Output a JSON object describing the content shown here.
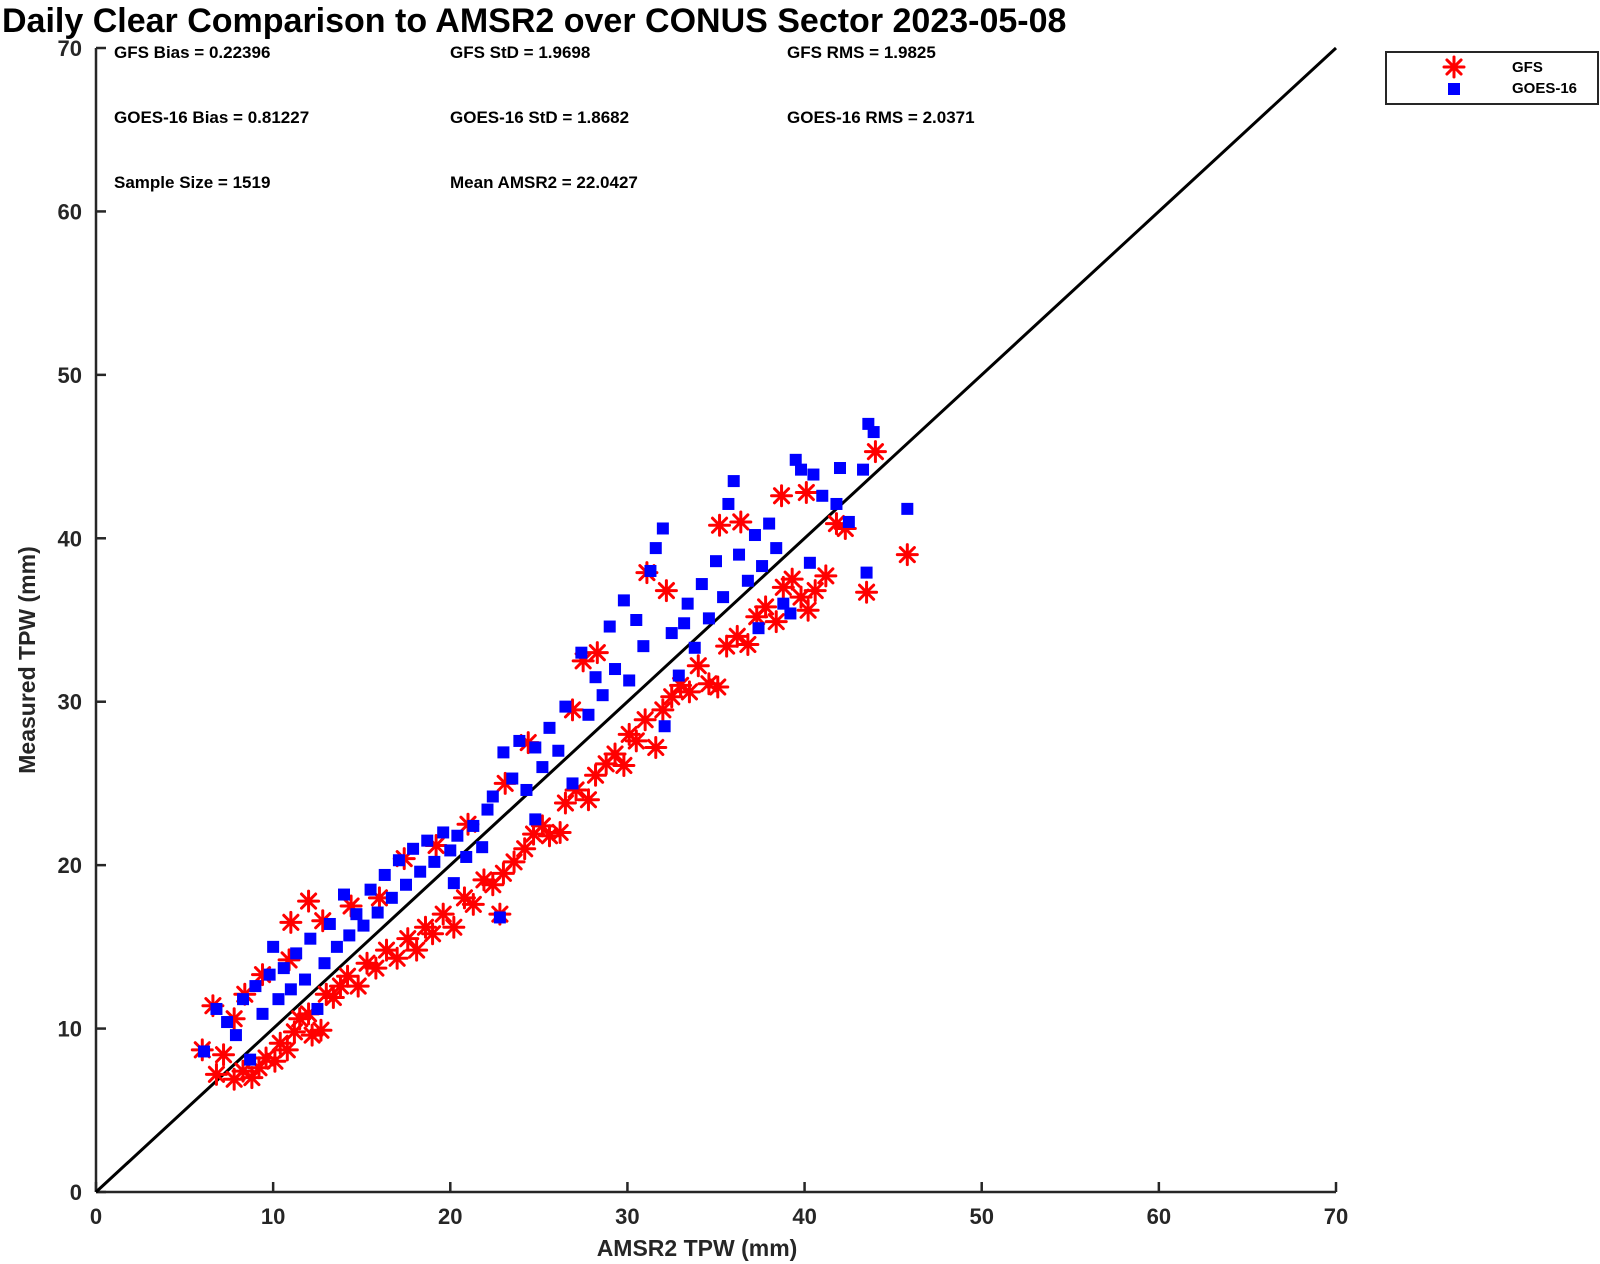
{
  "colors": {
    "gfs": "#ff0000",
    "goes": "#0000ff",
    "axis": "#262626",
    "reference_line": "#000000"
  },
  "chart_data": {
    "type": "scatter",
    "title": "Daily Clear Comparison to AMSR2 over CONUS Sector 2023-05-08",
    "xlabel": "AMSR2 TPW (mm)",
    "ylabel": "Measured TPW (mm)",
    "xlim": [
      0,
      70
    ],
    "ylim": [
      0,
      70
    ],
    "xticks": [
      0,
      10,
      20,
      30,
      40,
      50,
      60,
      70
    ],
    "yticks": [
      0,
      10,
      20,
      30,
      40,
      50,
      60,
      70
    ],
    "xtick_labels": [
      "0",
      "10",
      "20",
      "30",
      "40",
      "50",
      "60",
      "70"
    ],
    "ytick_labels": [
      "0",
      "10",
      "20",
      "30",
      "40",
      "50",
      "60",
      "70"
    ],
    "grid": false,
    "legend_position": "top-right-outside",
    "reference_line": {
      "name": "1:1 line",
      "from": [
        0,
        0
      ],
      "to": [
        70,
        70
      ]
    },
    "annotations": {
      "gfs_bias": "GFS Bias = 0.22396",
      "gfs_std": "GFS StD = 1.9698",
      "gfs_rms": "GFS RMS = 1.9825",
      "goes_bias": "GOES-16 Bias = 0.81227",
      "goes_std": "GOES-16 StD = 1.8682",
      "goes_rms": "GOES-16 RMS = 2.0371",
      "sample_size": "Sample Size = 1519",
      "mean_amsr2": "Mean AMSR2 = 22.0427"
    },
    "series": [
      {
        "name": "GFS",
        "marker": "asterisk",
        "color": "#ff0000",
        "points": [
          [
            6.0,
            8.7
          ],
          [
            6.6,
            11.4
          ],
          [
            6.8,
            7.2
          ],
          [
            7.2,
            8.4
          ],
          [
            7.8,
            6.9
          ],
          [
            8.3,
            7.4
          ],
          [
            8.8,
            7.0
          ],
          [
            9.2,
            7.6
          ],
          [
            9.6,
            8.2
          ],
          [
            10.1,
            8.0
          ],
          [
            10.4,
            9.1
          ],
          [
            10.8,
            8.7
          ],
          [
            11.2,
            9.8
          ],
          [
            11.5,
            10.6
          ],
          [
            12.0,
            10.9
          ],
          [
            12.2,
            9.6
          ],
          [
            12.7,
            9.9
          ],
          [
            11.0,
            16.5
          ],
          [
            12.0,
            17.8
          ],
          [
            13.0,
            12.1
          ],
          [
            13.4,
            11.9
          ],
          [
            13.8,
            12.6
          ],
          [
            14.2,
            13.2
          ],
          [
            14.8,
            12.6
          ],
          [
            15.3,
            14.0
          ],
          [
            15.8,
            13.7
          ],
          [
            16.4,
            14.8
          ],
          [
            17.0,
            14.3
          ],
          [
            17.6,
            15.5
          ],
          [
            18.1,
            14.8
          ],
          [
            18.6,
            16.2
          ],
          [
            19.0,
            15.8
          ],
          [
            19.6,
            17.0
          ],
          [
            20.2,
            16.2
          ],
          [
            20.8,
            18.0
          ],
          [
            21.3,
            17.6
          ],
          [
            21.9,
            19.1
          ],
          [
            22.4,
            18.8
          ],
          [
            22.8,
            17.0
          ],
          [
            23.0,
            19.5
          ],
          [
            23.6,
            20.2
          ],
          [
            24.2,
            21.0
          ],
          [
            24.7,
            21.9
          ],
          [
            25.2,
            22.4
          ],
          [
            25.6,
            21.8
          ],
          [
            26.2,
            22.0
          ],
          [
            26.5,
            23.8
          ],
          [
            27.1,
            24.6
          ],
          [
            27.8,
            24.0
          ],
          [
            28.2,
            25.5
          ],
          [
            28.8,
            26.2
          ],
          [
            29.3,
            26.8
          ],
          [
            29.8,
            26.1
          ],
          [
            30.1,
            28.0
          ],
          [
            30.5,
            27.6
          ],
          [
            31.0,
            28.9
          ],
          [
            31.6,
            27.2
          ],
          [
            32.0,
            29.5
          ],
          [
            32.5,
            30.3
          ],
          [
            33.0,
            31.0
          ],
          [
            33.5,
            30.6
          ],
          [
            34.0,
            32.2
          ],
          [
            34.6,
            31.1
          ],
          [
            35.1,
            30.9
          ],
          [
            35.6,
            33.4
          ],
          [
            36.2,
            34.0
          ],
          [
            36.8,
            33.5
          ],
          [
            37.3,
            35.2
          ],
          [
            37.8,
            35.8
          ],
          [
            38.4,
            34.9
          ],
          [
            38.8,
            37.0
          ],
          [
            39.3,
            37.5
          ],
          [
            39.8,
            36.4
          ],
          [
            40.2,
            35.6
          ],
          [
            40.6,
            36.8
          ],
          [
            41.2,
            37.7
          ],
          [
            41.8,
            40.9
          ],
          [
            42.3,
            40.6
          ],
          [
            43.5,
            36.7
          ],
          [
            44.0,
            45.3
          ],
          [
            45.8,
            39.0
          ],
          [
            38.7,
            42.6
          ],
          [
            40.1,
            42.8
          ],
          [
            35.2,
            40.8
          ],
          [
            36.4,
            41.0
          ],
          [
            31.1,
            37.9
          ],
          [
            32.2,
            36.8
          ],
          [
            28.3,
            33.0
          ],
          [
            27.5,
            32.5
          ],
          [
            26.9,
            29.5
          ],
          [
            24.4,
            27.5
          ],
          [
            23.1,
            25.0
          ],
          [
            21.0,
            22.5
          ],
          [
            19.2,
            21.2
          ],
          [
            17.4,
            20.4
          ],
          [
            16.0,
            18.0
          ],
          [
            14.4,
            17.5
          ],
          [
            12.8,
            16.6
          ],
          [
            10.9,
            14.2
          ],
          [
            9.4,
            13.3
          ],
          [
            8.4,
            12.1
          ],
          [
            7.8,
            10.6
          ]
        ]
      },
      {
        "name": "GOES-16",
        "marker": "square",
        "color": "#0000ff",
        "points": [
          [
            6.1,
            8.6
          ],
          [
            6.8,
            11.2
          ],
          [
            7.4,
            10.4
          ],
          [
            7.9,
            9.6
          ],
          [
            8.3,
            11.8
          ],
          [
            8.7,
            8.1
          ],
          [
            9.0,
            12.6
          ],
          [
            9.4,
            10.9
          ],
          [
            9.8,
            13.3
          ],
          [
            10.0,
            15.0
          ],
          [
            10.3,
            11.8
          ],
          [
            10.6,
            13.7
          ],
          [
            11.0,
            12.4
          ],
          [
            11.3,
            14.6
          ],
          [
            11.8,
            13.0
          ],
          [
            12.1,
            15.5
          ],
          [
            12.5,
            11.2
          ],
          [
            12.9,
            14.0
          ],
          [
            13.2,
            16.4
          ],
          [
            13.6,
            15.0
          ],
          [
            14.0,
            18.2
          ],
          [
            14.3,
            15.7
          ],
          [
            14.7,
            17.0
          ],
          [
            15.1,
            16.3
          ],
          [
            15.5,
            18.5
          ],
          [
            15.9,
            17.1
          ],
          [
            16.3,
            19.4
          ],
          [
            16.7,
            18.0
          ],
          [
            17.1,
            20.3
          ],
          [
            17.5,
            18.8
          ],
          [
            17.9,
            21.0
          ],
          [
            18.3,
            19.6
          ],
          [
            18.7,
            21.5
          ],
          [
            19.1,
            20.2
          ],
          [
            19.6,
            22.0
          ],
          [
            20.0,
            20.9
          ],
          [
            20.4,
            21.8
          ],
          [
            20.9,
            20.5
          ],
          [
            21.3,
            22.4
          ],
          [
            21.8,
            21.1
          ],
          [
            22.1,
            23.4
          ],
          [
            22.4,
            24.2
          ],
          [
            22.8,
            16.8
          ],
          [
            23.0,
            26.9
          ],
          [
            23.5,
            25.3
          ],
          [
            23.9,
            27.6
          ],
          [
            24.3,
            24.6
          ],
          [
            24.8,
            27.2
          ],
          [
            25.2,
            26.0
          ],
          [
            25.6,
            28.4
          ],
          [
            26.1,
            27.0
          ],
          [
            26.5,
            29.7
          ],
          [
            26.9,
            25.0
          ],
          [
            27.4,
            33.0
          ],
          [
            27.8,
            29.2
          ],
          [
            28.2,
            31.5
          ],
          [
            28.6,
            30.4
          ],
          [
            29.0,
            34.6
          ],
          [
            29.3,
            32.0
          ],
          [
            29.8,
            36.2
          ],
          [
            30.1,
            31.3
          ],
          [
            30.5,
            35.0
          ],
          [
            30.9,
            33.4
          ],
          [
            31.3,
            38.0
          ],
          [
            31.6,
            39.4
          ],
          [
            32.0,
            40.6
          ],
          [
            32.1,
            28.5
          ],
          [
            32.5,
            34.2
          ],
          [
            32.9,
            31.6
          ],
          [
            33.4,
            36.0
          ],
          [
            33.8,
            33.3
          ],
          [
            34.2,
            37.2
          ],
          [
            34.6,
            35.1
          ],
          [
            35.0,
            38.6
          ],
          [
            35.4,
            36.4
          ],
          [
            35.7,
            42.1
          ],
          [
            36.0,
            43.5
          ],
          [
            36.3,
            39.0
          ],
          [
            36.8,
            37.4
          ],
          [
            37.2,
            40.2
          ],
          [
            37.6,
            38.3
          ],
          [
            38.0,
            40.9
          ],
          [
            38.4,
            39.4
          ],
          [
            38.8,
            36.0
          ],
          [
            39.2,
            35.4
          ],
          [
            39.5,
            44.8
          ],
          [
            39.8,
            44.2
          ],
          [
            40.3,
            38.5
          ],
          [
            40.5,
            43.9
          ],
          [
            41.0,
            42.6
          ],
          [
            41.8,
            42.1
          ],
          [
            42.0,
            44.3
          ],
          [
            42.5,
            41.0
          ],
          [
            43.3,
            44.2
          ],
          [
            43.5,
            37.9
          ],
          [
            43.6,
            47.0
          ],
          [
            43.9,
            46.5
          ],
          [
            45.8,
            41.8
          ],
          [
            37.4,
            34.5
          ],
          [
            33.2,
            34.8
          ],
          [
            24.8,
            22.8
          ],
          [
            20.2,
            18.9
          ]
        ]
      }
    ]
  }
}
